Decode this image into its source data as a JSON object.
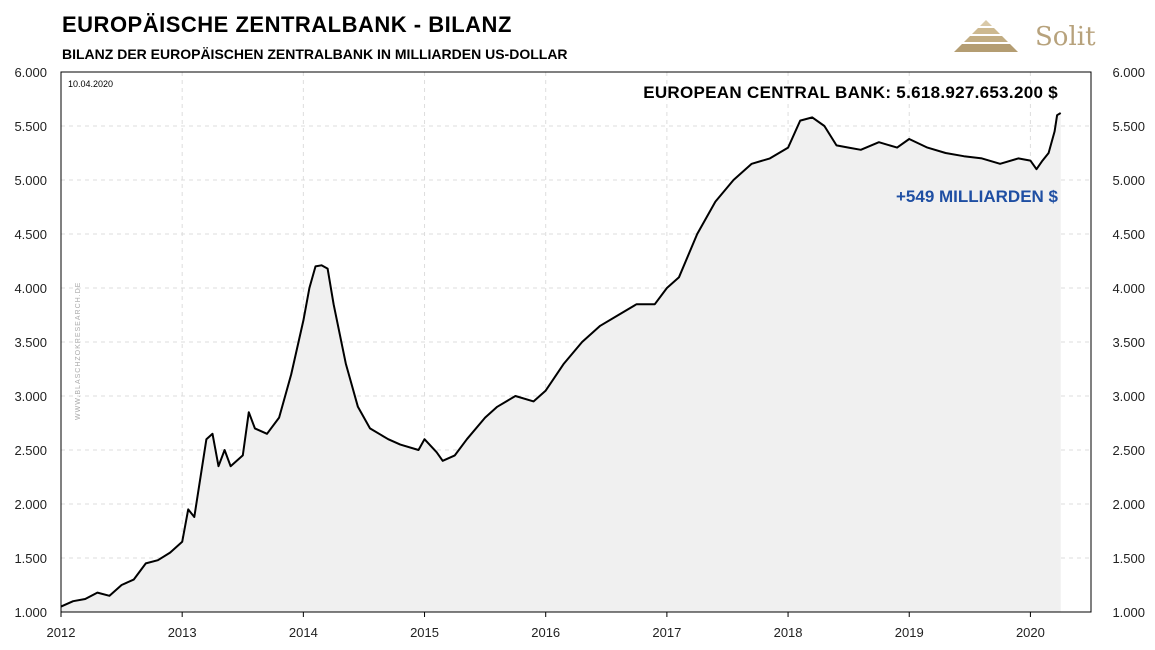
{
  "header": {
    "title": "EUROPÄISCHE ZENTRALBANK - BILANZ",
    "subtitle": "BILANZ  DER  EUROPÄISCHEN  ZENTRALBANK IN MILLIARDEN US-DOLLAR"
  },
  "logo": {
    "text": "Solit",
    "color": "#b7a27c"
  },
  "chart_data": {
    "type": "area",
    "date_label": "10.04.2020",
    "watermark": "WWW.BLASCHZOKRESEARCH.DE",
    "annotations": {
      "value_label": "EUROPEAN CENTRAL BANK: 5.618.927.653.200 $",
      "change_label": "+549 MILLIARDEN $",
      "change_color": "#1f4fa3"
    },
    "y_ticks": [
      "1.000",
      "1.500",
      "2.000",
      "2.500",
      "3.000",
      "3.500",
      "4.000",
      "4.500",
      "5.000",
      "5.500",
      "6.000"
    ],
    "x_ticks": [
      "2012",
      "2013",
      "2014",
      "2015",
      "2016",
      "2017",
      "2018",
      "2019",
      "2020"
    ],
    "ylim": [
      1000,
      6000
    ],
    "xlim": [
      2012.0,
      2020.5
    ],
    "grid": true,
    "fill_color": "#f0f0f0",
    "line_color": "#000000",
    "series": [
      {
        "x": [
          2012.0,
          2012.1,
          2012.2,
          2012.3,
          2012.4,
          2012.5,
          2012.6,
          2012.7,
          2012.8,
          2012.9,
          2013.0,
          2013.05,
          2013.1,
          2013.2,
          2013.25,
          2013.3,
          2013.35,
          2013.4,
          2013.5,
          2013.55,
          2013.6,
          2013.7,
          2013.8,
          2013.9,
          2014.0,
          2014.05,
          2014.1,
          2014.15,
          2014.2,
          2014.25,
          2014.35,
          2014.45,
          2014.55,
          2014.7,
          2014.8,
          2014.95,
          2015.0,
          2015.1,
          2015.15,
          2015.25,
          2015.35,
          2015.5,
          2015.6,
          2015.75,
          2015.9,
          2016.0,
          2016.15,
          2016.3,
          2016.45,
          2016.6,
          2016.75,
          2016.9,
          2017.0,
          2017.1,
          2017.25,
          2017.4,
          2017.55,
          2017.7,
          2017.85,
          2018.0,
          2018.1,
          2018.2,
          2018.3,
          2018.4,
          2018.5,
          2018.6,
          2018.75,
          2018.9,
          2019.0,
          2019.15,
          2019.3,
          2019.45,
          2019.6,
          2019.75,
          2019.9,
          2020.0,
          2020.05,
          2020.1,
          2020.15,
          2020.2,
          2020.22,
          2020.25
        ],
        "values": [
          1050,
          1100,
          1120,
          1180,
          1150,
          1250,
          1300,
          1450,
          1480,
          1550,
          1650,
          1950,
          1880,
          2600,
          2650,
          2350,
          2500,
          2350,
          2450,
          2850,
          2700,
          2650,
          2800,
          3200,
          3700,
          4000,
          4200,
          4210,
          4180,
          3850,
          3300,
          2900,
          2700,
          2600,
          2550,
          2500,
          2600,
          2480,
          2400,
          2450,
          2600,
          2800,
          2900,
          3000,
          2950,
          3050,
          3300,
          3500,
          3650,
          3750,
          3850,
          3850,
          4000,
          4100,
          4500,
          4800,
          5000,
          5150,
          5200,
          5300,
          5550,
          5580,
          5500,
          5320,
          5300,
          5280,
          5350,
          5300,
          5380,
          5300,
          5250,
          5220,
          5200,
          5150,
          5200,
          5180,
          5100,
          5180,
          5250,
          5450,
          5600,
          5620
        ]
      }
    ]
  }
}
